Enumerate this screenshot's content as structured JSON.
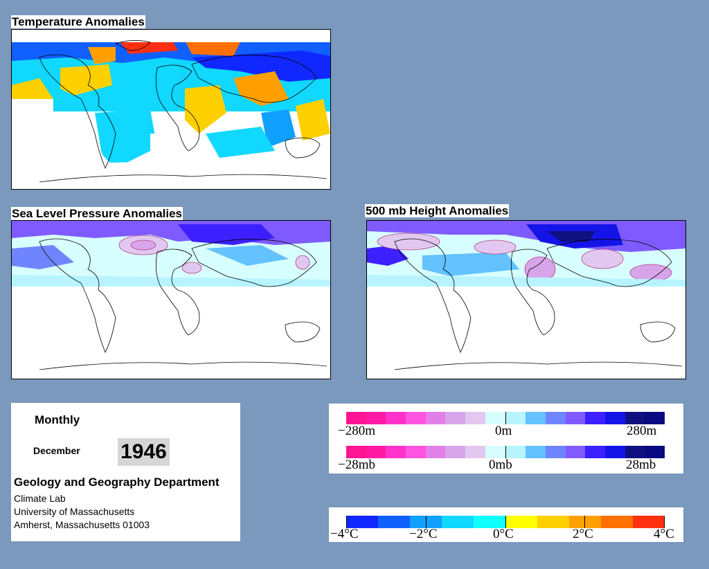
{
  "panels": {
    "temperature": {
      "title": "Temperature Anomalies"
    },
    "slp": {
      "title": "Sea Level Pressure Anomalies"
    },
    "height500": {
      "title": "500 mb Height Anomalies"
    }
  },
  "info": {
    "period": "Monthly",
    "month": "December",
    "year": "1946",
    "department": "Geology and Geography Department",
    "lab": "Climate Lab",
    "university": "University of Massachusetts",
    "address": "Amherst, Massachusetts 01003"
  },
  "legends": {
    "height": {
      "min_label": "−280m",
      "mid_label": "0m",
      "max_label": "280m"
    },
    "pressure": {
      "min_label": "−28mb",
      "mid_label": "0mb",
      "max_label": "28mb"
    },
    "temperature": {
      "labels": [
        "−4°C",
        "−2°C",
        "0°C",
        "2°C",
        "4°C"
      ]
    }
  },
  "colors": {
    "background": "#7b98bd",
    "anomaly_scale": [
      "#ff1493",
      "#ff1aa3",
      "#ff33cc",
      "#ff55e0",
      "#e27fe8",
      "#d9a5ea",
      "#e2c8f0",
      "#d8ffff",
      "#b8f4ff",
      "#63c2ff",
      "#6f85ff",
      "#7f5bff",
      "#3c20ff",
      "#1414e8",
      "#101080",
      "#0a0a80"
    ],
    "temperature_scale": [
      "#1028ff",
      "#1060ff",
      "#10a0ff",
      "#10d8ff",
      "#10ffff",
      "#ffff00",
      "#ffd000",
      "#ffa000",
      "#ff7000",
      "#ff3010"
    ]
  }
}
